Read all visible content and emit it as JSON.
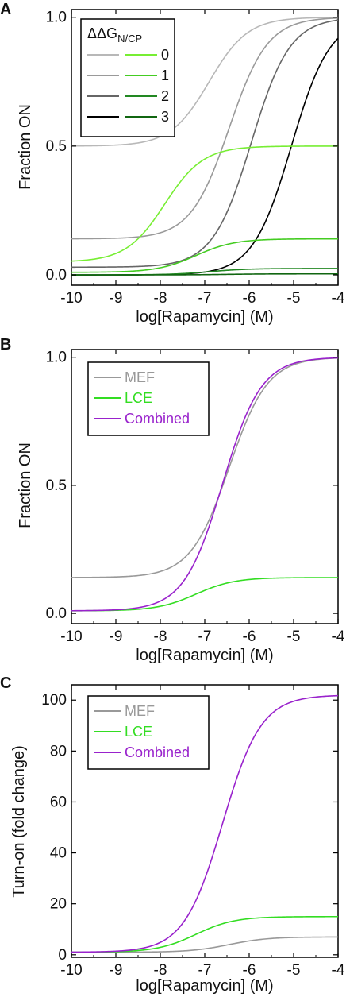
{
  "chart_data": [
    {
      "panel": "A",
      "type": "line",
      "xlabel": "log[Rapamycin] (M)",
      "ylabel": "Fraction ON",
      "xlim": [
        -10,
        -4
      ],
      "ylim": [
        -0.04,
        1.03
      ],
      "xticks": [
        "-10",
        "-9",
        "-8",
        "-7",
        "-6",
        "-5",
        "-4"
      ],
      "yticks": [
        "0.0",
        "0.5",
        "1.0"
      ],
      "ytick_values": [
        0,
        0.5,
        1.0
      ],
      "legend": {
        "title_main": "ΔΔG",
        "title_sub": "N/CP",
        "placement": "top-left",
        "labels": [
          "0",
          "1",
          "2",
          "3"
        ]
      },
      "series": [
        {
          "name": "0",
          "color": "#b8b8b8",
          "kind": "sigmoid",
          "bottom": 0.5,
          "top": 1.0,
          "ec50": -6.9,
          "hill": 1.0
        },
        {
          "name": "1",
          "color": "#9a9a9a",
          "kind": "sigmoid",
          "bottom": 0.14,
          "top": 1.0,
          "ec50": -6.45,
          "hill": 1.0
        },
        {
          "name": "2",
          "color": "#666666",
          "kind": "sigmoid",
          "bottom": 0.03,
          "top": 1.0,
          "ec50": -5.95,
          "hill": 1.0
        },
        {
          "name": "3",
          "color": "#000000",
          "kind": "sigmoid",
          "bottom": 0.0,
          "top": 1.0,
          "ec50": -5.05,
          "hill": 1.0
        },
        {
          "name": "0",
          "color": "#77ee33",
          "kind": "sigmoid",
          "bottom": 0.05,
          "top": 0.5,
          "ec50": -7.9,
          "hill": 1.0
        },
        {
          "name": "1",
          "color": "#44cc22",
          "kind": "sigmoid",
          "bottom": 0.01,
          "top": 0.14,
          "ec50": -7.2,
          "hill": 1.0
        },
        {
          "name": "2",
          "color": "#228822",
          "kind": "sigmoid",
          "bottom": 0.0,
          "top": 0.025,
          "ec50": -6.9,
          "hill": 1.0
        },
        {
          "name": "3",
          "color": "#116611",
          "kind": "sigmoid",
          "bottom": 0.0,
          "top": 0.004,
          "ec50": -6.5,
          "hill": 1.0
        }
      ]
    },
    {
      "panel": "B",
      "type": "line",
      "xlabel": "log[Rapamycin] (M)",
      "ylabel": "Fraction ON",
      "xlim": [
        -10,
        -4
      ],
      "ylim": [
        -0.04,
        1.03
      ],
      "xticks": [
        "-10",
        "-9",
        "-8",
        "-7",
        "-6",
        "-5",
        "-4"
      ],
      "yticks": [
        "0.0",
        "0.5",
        "1.0"
      ],
      "ytick_values": [
        0,
        0.5,
        1.0
      ],
      "legend": {
        "placement": "top-left"
      },
      "series": [
        {
          "name": "MEF",
          "color": "#999999",
          "kind": "sigmoid",
          "bottom": 0.14,
          "top": 1.0,
          "ec50": -6.45,
          "hill": 1.0
        },
        {
          "name": "LCE",
          "color": "#33dd22",
          "kind": "sigmoid",
          "bottom": 0.01,
          "top": 0.14,
          "ec50": -7.2,
          "hill": 1.0
        },
        {
          "name": "Combined",
          "color": "#9922cc",
          "kind": "sigmoid",
          "bottom": 0.01,
          "top": 1.0,
          "ec50": -6.6,
          "hill": 1.0
        }
      ]
    },
    {
      "panel": "C",
      "type": "line",
      "xlabel": "log[Rapamycin] (M)",
      "ylabel": "Turn-on (fold change)",
      "xlim": [
        -10,
        -4
      ],
      "ylim": [
        -1,
        106
      ],
      "xticks": [
        "-10",
        "-9",
        "-8",
        "-7",
        "-6",
        "-5",
        "-4"
      ],
      "yticks": [
        "0",
        "20",
        "40",
        "60",
        "80",
        "100"
      ],
      "ytick_values": [
        0,
        20,
        40,
        60,
        80,
        100
      ],
      "legend": {
        "placement": "top-left"
      },
      "series": [
        {
          "name": "MEF",
          "color": "#999999",
          "kind": "sigmoid",
          "bottom": 1.0,
          "top": 7.0,
          "ec50": -6.45,
          "hill": 1.0
        },
        {
          "name": "LCE",
          "color": "#33dd22",
          "kind": "sigmoid",
          "bottom": 1.0,
          "top": 15.0,
          "ec50": -7.2,
          "hill": 1.0
        },
        {
          "name": "Combined",
          "color": "#9922cc",
          "kind": "sigmoid",
          "bottom": 1.0,
          "top": 102.0,
          "ec50": -6.6,
          "hill": 1.0
        }
      ]
    }
  ]
}
